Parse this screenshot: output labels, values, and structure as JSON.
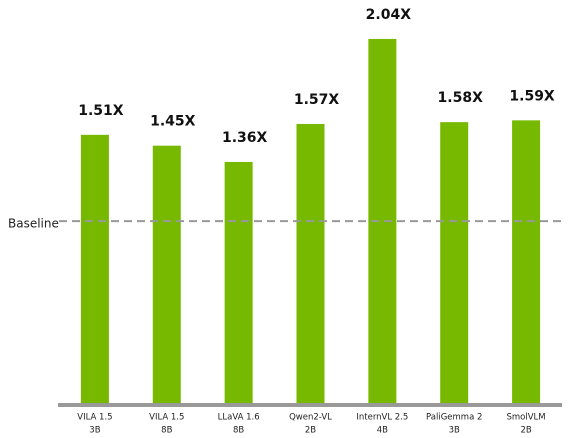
{
  "chart_data": {
    "type": "bar",
    "categories": [
      [
        "VILA 1.5",
        "3B"
      ],
      [
        "VILA 1.5",
        "8B"
      ],
      [
        "LLaVA 1.6",
        "8B"
      ],
      [
        "Qwen2-VL",
        "2B"
      ],
      [
        "InternVL 2.5",
        "4B"
      ],
      [
        "PaliGemma 2",
        "3B"
      ],
      [
        "SmolVLM",
        "2B"
      ]
    ],
    "values": [
      1.51,
      1.45,
      1.36,
      1.57,
      2.04,
      1.58,
      1.59
    ],
    "value_labels": [
      "1.51X",
      "1.45X",
      "1.36X",
      "1.57X",
      "2.04X",
      "1.58X",
      "1.59X"
    ],
    "color": "#76b900",
    "baseline": {
      "value": 1,
      "label": "Baseline"
    },
    "ylim": [
      0,
      2.2
    ]
  }
}
